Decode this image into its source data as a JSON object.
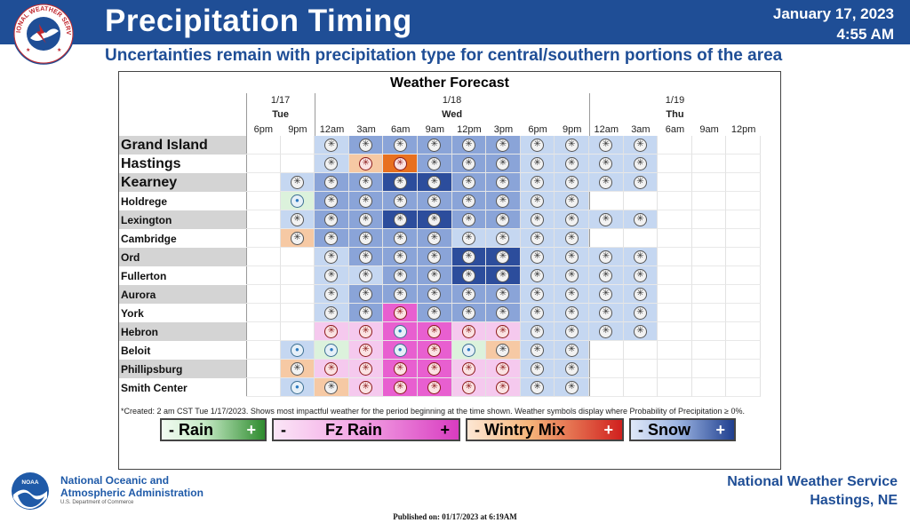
{
  "header": {
    "title": "Precipitation Timing",
    "date": "January 17, 2023",
    "time": "4:55 AM",
    "subtitle": "Uncertainties remain with precipitation type for central/southern portions of the area",
    "logo_text": "NATIONAL WEATHER SERVICE"
  },
  "forecast": {
    "title": "Weather Forecast",
    "days": [
      {
        "date": "1/17",
        "name": "Tue"
      },
      {
        "date": "1/18",
        "name": "Wed"
      },
      {
        "date": "1/19",
        "name": "Thu"
      }
    ],
    "times": [
      "6pm",
      "9pm",
      "12am",
      "3am",
      "6am",
      "9am",
      "12pm",
      "3pm",
      "6pm",
      "9pm",
      "12am",
      "3am",
      "6am",
      "9am",
      "12pm"
    ],
    "colors": {
      "s1": "#c5d7f1",
      "s2": "#8aa4d8",
      "s3": "#2c4d9c",
      "p1": "#f5c9ee",
      "p2": "#e85fd0",
      "m1": "#f6c9a4",
      "m2": "#e8701f",
      "r1": "#dcf2dc",
      "bl": "#ffffff"
    },
    "locations": [
      {
        "name": "Grand Island",
        "big": true,
        "cells": [
          "",
          "",
          "s1:s",
          "s2:s",
          "s2:s",
          "s2:s",
          "s2:s",
          "s2:s",
          "s1:s",
          "s1:s",
          "s1:s",
          "s1:s",
          "",
          "",
          ""
        ]
      },
      {
        "name": "Hastings",
        "big": true,
        "cells": [
          "",
          "",
          "s1:s",
          "m1:p",
          "m2:p",
          "s2:s",
          "s2:s",
          "s2:s",
          "s1:s",
          "s1:s",
          "s1:s",
          "s1:s",
          "",
          "",
          ""
        ]
      },
      {
        "name": "Kearney",
        "big": true,
        "cells": [
          "",
          "s1:s",
          "s2:s",
          "s2:s",
          "s3:s",
          "s3:s",
          "s2:s",
          "s2:s",
          "s1:s",
          "s1:s",
          "s1:s",
          "s1:s",
          "",
          "",
          ""
        ]
      },
      {
        "name": "Holdrege",
        "big": false,
        "cells": [
          "",
          "r1:d",
          "s2:s",
          "s2:s",
          "s2:s",
          "s2:s",
          "s2:s",
          "s2:s",
          "s1:s",
          "s1:s",
          "",
          "",
          "",
          "",
          ""
        ]
      },
      {
        "name": "Lexington",
        "big": false,
        "cells": [
          "",
          "s1:s",
          "s2:s",
          "s2:s",
          "s3:s",
          "s3:s",
          "s2:s",
          "s2:s",
          "s1:s",
          "s1:s",
          "s1:s",
          "s1:s",
          "",
          "",
          ""
        ]
      },
      {
        "name": "Cambridge",
        "big": false,
        "cells": [
          "",
          "m1:s",
          "s2:s",
          "s2:s",
          "s2:s",
          "s2:s",
          "s1:s",
          "s1:s",
          "s1:s",
          "s1:s",
          "",
          "",
          "",
          "",
          ""
        ]
      },
      {
        "name": "Ord",
        "big": false,
        "cells": [
          "",
          "",
          "s1:s",
          "s2:s",
          "s2:s",
          "s2:s",
          "s3:s",
          "s3:s",
          "s1:s",
          "s1:s",
          "s1:s",
          "s1:s",
          "",
          "",
          ""
        ]
      },
      {
        "name": "Fullerton",
        "big": false,
        "cells": [
          "",
          "",
          "s1:s",
          "s1:s",
          "s2:s",
          "s2:s",
          "s3:s",
          "s3:s",
          "s1:s",
          "s1:s",
          "s1:s",
          "s1:s",
          "",
          "",
          ""
        ]
      },
      {
        "name": "Aurora",
        "big": false,
        "cells": [
          "",
          "",
          "s1:s",
          "s2:s",
          "s2:s",
          "s2:s",
          "s2:s",
          "s2:s",
          "s1:s",
          "s1:s",
          "s1:s",
          "s1:s",
          "",
          "",
          ""
        ]
      },
      {
        "name": "York",
        "big": false,
        "cells": [
          "",
          "",
          "s1:s",
          "s2:s",
          "p2:p",
          "s2:s",
          "s2:s",
          "s2:s",
          "s1:s",
          "s1:s",
          "s1:s",
          "s1:s",
          "",
          "",
          ""
        ]
      },
      {
        "name": "Hebron",
        "big": false,
        "cells": [
          "",
          "",
          "p1:p",
          "p1:p",
          "p2:d",
          "p2:p",
          "p1:p",
          "p1:p",
          "s1:s",
          "s1:s",
          "s1:s",
          "s1:s",
          "",
          "",
          ""
        ]
      },
      {
        "name": "Beloit",
        "big": false,
        "cells": [
          "",
          "s1:d",
          "r1:d",
          "p1:p",
          "p2:d",
          "p2:p",
          "r1:d",
          "m1:s",
          "s1:s",
          "s1:s",
          "",
          "",
          "",
          "",
          ""
        ]
      },
      {
        "name": "Phillipsburg",
        "big": false,
        "cells": [
          "",
          "m1:s",
          "p1:p",
          "p1:p",
          "p2:p",
          "p2:p",
          "p1:p",
          "p1:p",
          "s1:s",
          "s1:s",
          "",
          "",
          "",
          "",
          ""
        ]
      },
      {
        "name": "Smith Center",
        "big": false,
        "cells": [
          "",
          "s1:d",
          "m1:s",
          "p1:p",
          "p2:p",
          "p2:p",
          "p1:p",
          "p1:p",
          "s1:s",
          "s1:s",
          "",
          "",
          "",
          "",
          ""
        ]
      }
    ],
    "footnote": "*Created: 2 am CST Tue 1/17/2023. Shows most impactful weather for the period beginning at the time shown. Weather symbols display where Probability of Precipitation ≥ 0%."
  },
  "legend": [
    {
      "minus": "- Rain",
      "plus": "+",
      "gradient": "linear-gradient(90deg,#f2fbf2 0%,#c8ecc8 40%,#2e8b2e 100%)",
      "text_color": "#000000",
      "plus_color": "#ffffff"
    },
    {
      "minus": "-",
      "label": "Fz Rain",
      "plus": "+",
      "gradient": "linear-gradient(90deg,#fbe6f7 0%,#f3a6e5 45%,#d83cc0 100%)",
      "text_color": "#000000",
      "plus_color": "#000000"
    },
    {
      "minus": "- Wintry Mix",
      "plus": "+",
      "gradient": "linear-gradient(90deg,#fde7d4 0%,#f6b57a 40%,#d0201e 100%)",
      "text_color": "#000000",
      "plus_color": "#ffffff"
    },
    {
      "minus": "- Snow",
      "plus": "+",
      "gradient": "linear-gradient(90deg,#dfe8f8 0%,#9db5e2 45%,#1f3f8f 100%)",
      "text_color": "#000000",
      "plus_color": "#ffffff"
    }
  ],
  "footer": {
    "noaa_line1": "National Oceanic and",
    "noaa_line2": "Atmospheric Administration",
    "noaa_dept": "U.S. Department of Commerce",
    "noaa_logo_text": "NOAA",
    "office_line1": "National Weather Service",
    "office_line2": "Hastings, NE",
    "published": "Published on: 01/17/2023 at 6:19AM"
  }
}
